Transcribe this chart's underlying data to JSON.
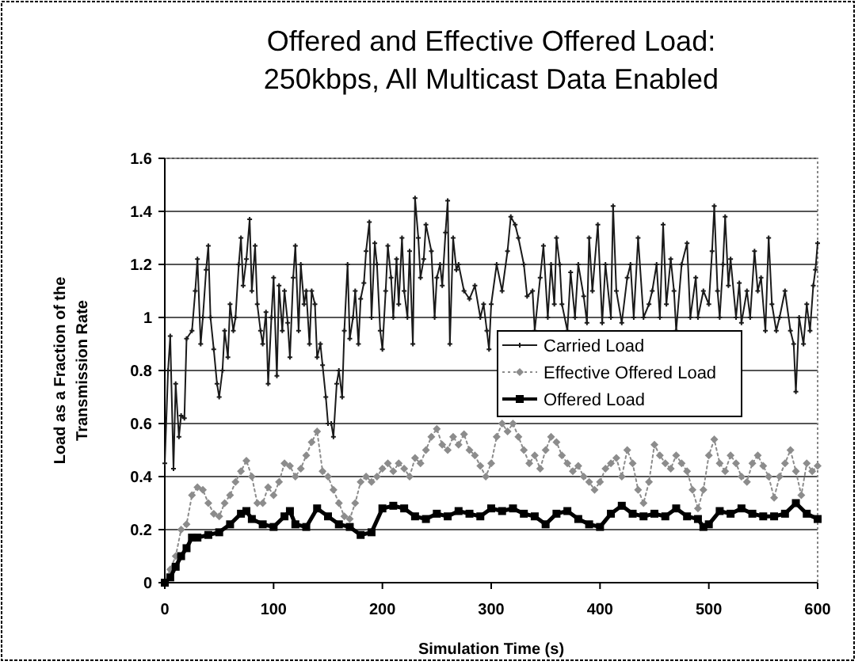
{
  "chart_data": {
    "type": "line",
    "title": "Offered and Effective Offered Load: 250kbps, All Multicast Data Enabled",
    "xlabel": "Simulation Time (s)",
    "ylabel": "Load as a Fraction of the Transmission Rate",
    "xlim": [
      0,
      600
    ],
    "xticks": [
      0,
      100,
      200,
      300,
      400,
      500,
      600
    ],
    "ylim": [
      0,
      1.6
    ],
    "yticks": [
      0,
      0.2,
      0.4,
      0.6,
      0.8,
      1,
      1.2,
      1.4,
      1.6
    ],
    "grid": "y",
    "legend": "right",
    "series": [
      {
        "name": "Carried Load",
        "color": "#1a1a1a",
        "marker": "cross",
        "line_style": "solid",
        "x": [
          0,
          3,
          5,
          8,
          10,
          13,
          15,
          18,
          20,
          25,
          28,
          30,
          33,
          35,
          38,
          40,
          42,
          45,
          48,
          50,
          53,
          55,
          58,
          60,
          63,
          65,
          68,
          70,
          72,
          75,
          78,
          80,
          83,
          85,
          88,
          90,
          93,
          95,
          98,
          100,
          103,
          105,
          108,
          110,
          113,
          115,
          118,
          120,
          123,
          125,
          128,
          130,
          133,
          135,
          138,
          140,
          143,
          145,
          148,
          150,
          153,
          155,
          158,
          160,
          163,
          165,
          168,
          170,
          173,
          175,
          178,
          180,
          183,
          185,
          188,
          190,
          193,
          195,
          198,
          200,
          203,
          205,
          208,
          210,
          213,
          215,
          218,
          220,
          223,
          225,
          228,
          230,
          233,
          235,
          238,
          240,
          245,
          248,
          250,
          253,
          255,
          258,
          260,
          262,
          265,
          268,
          270,
          275,
          280,
          285,
          290,
          293,
          296,
          298,
          300,
          305,
          310,
          315,
          318,
          322,
          325,
          330,
          333,
          338,
          340,
          345,
          348,
          352,
          355,
          358,
          360,
          363,
          365,
          370,
          373,
          377,
          380,
          385,
          388,
          390,
          393,
          398,
          402,
          405,
          410,
          412,
          415,
          420,
          425,
          428,
          431,
          435,
          440,
          445,
          448,
          452,
          455,
          458,
          461,
          465,
          468,
          470,
          475,
          480,
          483,
          488,
          490,
          495,
          500,
          503,
          505,
          508,
          510,
          513,
          515,
          518,
          520,
          525,
          528,
          530,
          535,
          538,
          542,
          545,
          548,
          552,
          555,
          558,
          562,
          565,
          570,
          575,
          578,
          580,
          583,
          587,
          590,
          593,
          596,
          598,
          600
        ],
        "values": [
          0.45,
          0.8,
          0.93,
          0.43,
          0.75,
          0.55,
          0.63,
          0.62,
          0.92,
          0.95,
          1.1,
          1.22,
          0.9,
          1,
          1.18,
          1.27,
          1,
          0.88,
          0.75,
          0.7,
          0.8,
          0.95,
          0.85,
          1.05,
          0.95,
          1,
          1.2,
          1.3,
          1.12,
          1.22,
          1.37,
          1.1,
          1.27,
          1.05,
          0.95,
          0.9,
          1.02,
          0.75,
          1,
          1.15,
          0.78,
          1.12,
          0.95,
          1.1,
          0.98,
          0.85,
          1.15,
          1.27,
          0.95,
          1.2,
          1.05,
          1.1,
          0.9,
          1.1,
          1.05,
          0.85,
          0.9,
          0.82,
          0.7,
          0.6,
          0.6,
          0.55,
          0.75,
          0.8,
          0.7,
          0.95,
          1.2,
          0.92,
          1,
          1.1,
          0.9,
          1.07,
          1.13,
          1.25,
          1.36,
          1,
          1.28,
          1.2,
          0.95,
          0.88,
          1.1,
          1.27,
          1.15,
          1,
          1.22,
          1.05,
          1.3,
          1.1,
          1,
          1.25,
          0.9,
          1.45,
          1.3,
          1.15,
          1.22,
          1.35,
          1.25,
          1,
          1.15,
          1.2,
          1.12,
          1.32,
          1.44,
          0.9,
          1.3,
          1.18,
          1.2,
          1.1,
          1.07,
          1.12,
          1,
          1.05,
          0.95,
          0.88,
          1.05,
          1.2,
          1.1,
          1.25,
          1.38,
          1.35,
          1.3,
          1.2,
          1.08,
          1.1,
          0.95,
          1.15,
          1.27,
          1,
          1.2,
          1.05,
          1.3,
          1.2,
          1.05,
          0.95,
          1.17,
          1,
          1.2,
          1.08,
          0.98,
          1.3,
          1.1,
          1.35,
          0.98,
          1.2,
          1,
          1.42,
          1.1,
          0.98,
          1.15,
          1.2,
          1,
          1.3,
          1,
          1.05,
          1.1,
          1.2,
          1,
          1.35,
          1.05,
          1.22,
          1.1,
          0.95,
          1.2,
          1.28,
          1,
          1.15,
          1,
          1.1,
          1.05,
          1.25,
          1.42,
          1.1,
          1,
          1.2,
          1.38,
          1.12,
          1.22,
          1,
          1.13,
          0.98,
          1.1,
          1,
          1.25,
          1.1,
          1.15,
          0.95,
          1.3,
          1.05,
          0.95,
          1,
          1.1,
          0.95,
          0.9,
          0.72,
          1,
          0.9,
          1.05,
          0.95,
          1.12,
          1.18,
          1.28
        ]
      },
      {
        "name": "Effective Offered Load",
        "color": "#8c8c8c",
        "marker": "diamond",
        "line_style": "dotted",
        "x": [
          0,
          5,
          10,
          15,
          20,
          25,
          30,
          35,
          40,
          45,
          50,
          55,
          60,
          65,
          70,
          75,
          80,
          85,
          90,
          95,
          100,
          105,
          110,
          115,
          120,
          125,
          130,
          135,
          140,
          145,
          150,
          155,
          160,
          165,
          170,
          175,
          180,
          185,
          190,
          195,
          200,
          205,
          210,
          215,
          220,
          225,
          230,
          235,
          240,
          245,
          250,
          255,
          260,
          265,
          270,
          275,
          280,
          285,
          290,
          295,
          300,
          305,
          310,
          315,
          320,
          325,
          330,
          335,
          340,
          345,
          350,
          355,
          360,
          365,
          370,
          375,
          380,
          385,
          390,
          395,
          400,
          405,
          410,
          415,
          420,
          425,
          430,
          435,
          440,
          445,
          450,
          455,
          460,
          465,
          470,
          475,
          480,
          485,
          490,
          495,
          500,
          505,
          510,
          515,
          520,
          525,
          530,
          535,
          540,
          545,
          550,
          555,
          560,
          565,
          570,
          575,
          580,
          585,
          590,
          595,
          600
        ],
        "values": [
          0,
          0.05,
          0.1,
          0.2,
          0.22,
          0.33,
          0.36,
          0.35,
          0.3,
          0.26,
          0.25,
          0.3,
          0.33,
          0.38,
          0.42,
          0.46,
          0.4,
          0.3,
          0.3,
          0.36,
          0.33,
          0.38,
          0.45,
          0.44,
          0.4,
          0.43,
          0.48,
          0.53,
          0.57,
          0.42,
          0.4,
          0.35,
          0.3,
          0.25,
          0.24,
          0.3,
          0.38,
          0.4,
          0.38,
          0.4,
          0.43,
          0.45,
          0.42,
          0.45,
          0.43,
          0.4,
          0.47,
          0.45,
          0.5,
          0.55,
          0.58,
          0.52,
          0.5,
          0.55,
          0.52,
          0.56,
          0.5,
          0.48,
          0.44,
          0.4,
          0.45,
          0.55,
          0.6,
          0.57,
          0.6,
          0.55,
          0.5,
          0.45,
          0.48,
          0.43,
          0.5,
          0.55,
          0.53,
          0.48,
          0.45,
          0.42,
          0.44,
          0.4,
          0.38,
          0.35,
          0.38,
          0.43,
          0.45,
          0.47,
          0.4,
          0.5,
          0.45,
          0.35,
          0.3,
          0.38,
          0.52,
          0.48,
          0.45,
          0.43,
          0.48,
          0.45,
          0.42,
          0.35,
          0.28,
          0.35,
          0.48,
          0.54,
          0.45,
          0.42,
          0.48,
          0.45,
          0.4,
          0.38,
          0.45,
          0.48,
          0.44,
          0.4,
          0.32,
          0.4,
          0.45,
          0.5,
          0.42,
          0.33,
          0.45,
          0.42,
          0.44
        ]
      },
      {
        "name": "Offered Load",
        "color": "#000000",
        "marker": "square",
        "line_style": "solid",
        "x": [
          0,
          5,
          10,
          15,
          20,
          25,
          30,
          40,
          50,
          60,
          70,
          75,
          80,
          90,
          100,
          110,
          115,
          120,
          130,
          140,
          150,
          160,
          170,
          180,
          190,
          200,
          210,
          220,
          230,
          240,
          250,
          260,
          270,
          280,
          290,
          300,
          310,
          320,
          330,
          340,
          350,
          360,
          370,
          380,
          390,
          400,
          410,
          420,
          430,
          440,
          450,
          460,
          470,
          480,
          490,
          495,
          500,
          510,
          520,
          530,
          540,
          550,
          560,
          570,
          580,
          590,
          600
        ],
        "values": [
          0,
          0.02,
          0.06,
          0.1,
          0.13,
          0.17,
          0.17,
          0.18,
          0.19,
          0.22,
          0.26,
          0.27,
          0.24,
          0.22,
          0.21,
          0.25,
          0.27,
          0.22,
          0.21,
          0.28,
          0.25,
          0.22,
          0.21,
          0.18,
          0.19,
          0.28,
          0.29,
          0.28,
          0.25,
          0.24,
          0.26,
          0.25,
          0.27,
          0.26,
          0.25,
          0.28,
          0.27,
          0.28,
          0.26,
          0.25,
          0.22,
          0.26,
          0.27,
          0.24,
          0.22,
          0.21,
          0.26,
          0.29,
          0.26,
          0.25,
          0.26,
          0.25,
          0.28,
          0.25,
          0.24,
          0.21,
          0.22,
          0.27,
          0.26,
          0.28,
          0.26,
          0.25,
          0.25,
          0.26,
          0.3,
          0.26,
          0.24
        ]
      }
    ]
  }
}
